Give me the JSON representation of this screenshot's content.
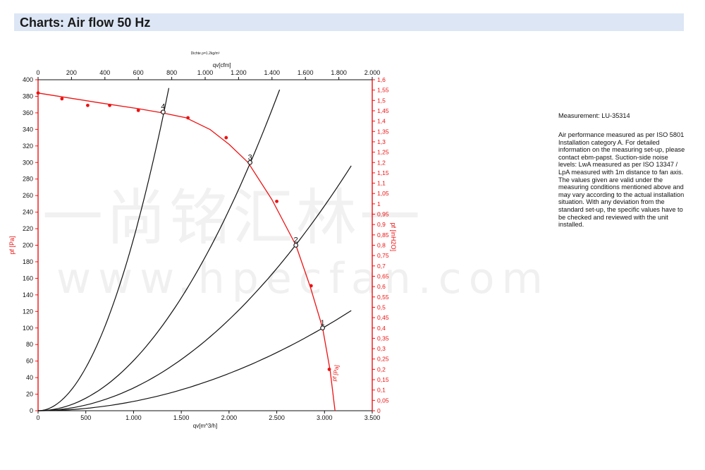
{
  "header": {
    "title": "Charts: Air flow 50 Hz"
  },
  "side_panel": {
    "measurement": "Measurement: LU-35314",
    "description": "Air performance measured as per ISO 5801 Installation category A. For detailed information on the measuring set-up, please contact ebm-papst. Suction-side noise levels: LwA measured as per ISO 13347 / LpA measured with 1m distance to fan axis. The values given are valid under the measuring conditions mentioned above and may vary according to the actual installation situation. With any deviation from the standard set-up, the specific values have to be checked and reviewed with the unit installed."
  },
  "watermark": {
    "chinese": "一尚铭汇林一",
    "url": "www.hpecfan.com"
  },
  "colors": {
    "fan_curve": "#ee1111",
    "system_curves": "#111111",
    "axis_red": "#ee1111",
    "axis_black": "#111111"
  },
  "chart_data": {
    "type": "line",
    "title": "",
    "top_note": "Dichte ρ=1.2kg/m³",
    "xlabel": "qv[m^3/h]",
    "x2label": "qv[cfm]",
    "ylabel": "pf [Pa]",
    "y2label": "pf [inH2O]",
    "curve_label": "pf [Pa]",
    "xlim": [
      0,
      3500
    ],
    "ylim": [
      0,
      400
    ],
    "x2lim": [
      0,
      2000
    ],
    "y2lim": [
      0,
      1.6
    ],
    "x_ticks": [
      "0",
      "500",
      "1.000",
      "1.500",
      "2.000",
      "2.500",
      "3.000",
      "3.500"
    ],
    "y_ticks": [
      "0",
      "20",
      "40",
      "60",
      "80",
      "100",
      "120",
      "140",
      "160",
      "180",
      "200",
      "220",
      "240",
      "260",
      "280",
      "300",
      "320",
      "340",
      "360",
      "380",
      "400"
    ],
    "x2_ticks": [
      "0",
      "200",
      "400",
      "600",
      "800",
      "1.000",
      "1.200",
      "1.400",
      "1.600",
      "1.800",
      "2.000"
    ],
    "y2_ticks": [
      "0",
      "0,05",
      "0,1",
      "0,15",
      "0,2",
      "0,25",
      "0,3",
      "0,35",
      "0,4",
      "0,45",
      "0,5",
      "0,55",
      "0,6",
      "0,65",
      "0,7",
      "0,75",
      "0,8",
      "0,85",
      "0,9",
      "0,95",
      "1",
      "1,05",
      "1,1",
      "1,15",
      "1,2",
      "1,25",
      "1,3",
      "1,35",
      "1,4",
      "1,45",
      "1,5",
      "1,55",
      "1,6"
    ],
    "grid": false,
    "series": [
      {
        "role": "fan-curve",
        "x": [
          0,
          650,
          1050,
          1300,
          1550,
          1800,
          2000,
          2200,
          2450,
          2700,
          2850,
          2980,
          3060,
          3110
        ],
        "y": [
          384,
          372,
          365,
          360,
          354,
          340,
          322,
          300,
          255,
          200,
          150,
          100,
          48,
          0
        ]
      },
      {
        "role": "measured-points",
        "x": [
          0,
          250,
          520,
          750,
          1050,
          1300,
          1570,
          1970,
          2500,
          2860,
          3050
        ],
        "y": [
          384,
          377,
          369,
          369,
          363,
          361,
          354,
          330,
          253,
          151,
          50
        ]
      }
    ],
    "operating_points": [
      {
        "label": "1",
        "x": 2980,
        "y": 100
      },
      {
        "label": "2",
        "x": 2700,
        "y": 200
      },
      {
        "label": "3",
        "x": 2220,
        "y": 300
      },
      {
        "label": "4",
        "x": 1310,
        "y": 361
      }
    ],
    "system_curves": [
      {
        "label": "1",
        "x_end": 3280,
        "y_end": 121
      },
      {
        "label": "2",
        "x_end": 3280,
        "y_end": 296
      },
      {
        "label": "3",
        "x_end": 2530,
        "y_end": 388
      },
      {
        "label": "4",
        "x_end": 1370,
        "y_end": 390
      }
    ]
  }
}
